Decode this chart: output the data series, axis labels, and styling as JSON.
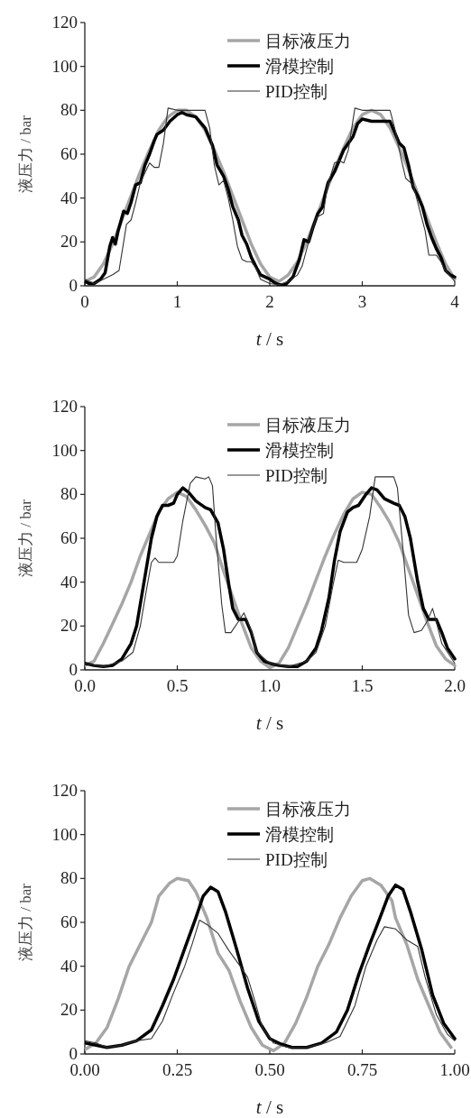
{
  "chart_data": [
    {
      "type": "line",
      "xlabel": "t / s",
      "ylabel": "液压力 / bar",
      "xlim": [
        0,
        4
      ],
      "ylim": [
        0,
        120
      ],
      "xticks": [
        0,
        1,
        2,
        3,
        4
      ],
      "yticks": [
        0,
        20,
        40,
        60,
        80,
        100,
        120
      ],
      "legend": "top right",
      "grid": false,
      "series": [
        {
          "name": "目标液压力",
          "color": "#a6a6a6",
          "x": [
            0,
            0.1,
            0.2,
            0.3,
            0.4,
            0.5,
            0.6,
            0.7,
            0.8,
            0.9,
            1.0,
            1.1,
            1.2,
            1.3,
            1.4,
            1.5,
            1.6,
            1.7,
            1.8,
            1.9,
            2.0,
            2.1,
            2.2,
            2.3,
            2.4,
            2.5,
            2.6,
            2.7,
            2.8,
            2.9,
            3.0,
            3.1,
            3.2,
            3.3,
            3.4,
            3.5,
            3.6,
            3.7,
            3.8,
            3.9,
            4.0
          ],
          "values": [
            2,
            4,
            10,
            19,
            30,
            41,
            52,
            62,
            71,
            77,
            80,
            80,
            77,
            71,
            62,
            52,
            41,
            30,
            19,
            10,
            4,
            2,
            5,
            11,
            20,
            31,
            42,
            53,
            63,
            72,
            78,
            80,
            78,
            72,
            63,
            53,
            42,
            31,
            20,
            10,
            3
          ]
        },
        {
          "name": "滑模控制",
          "color": "#000000",
          "x": [
            0,
            0.05,
            0.1,
            0.17,
            0.22,
            0.27,
            0.3,
            0.33,
            0.36,
            0.42,
            0.46,
            0.5,
            0.55,
            0.6,
            0.65,
            0.7,
            0.75,
            0.78,
            0.85,
            0.92,
            1.0,
            1.05,
            1.1,
            1.2,
            1.3,
            1.38,
            1.43,
            1.5,
            1.55,
            1.6,
            1.66,
            1.7,
            1.75,
            1.8,
            1.86,
            1.9,
            2.0,
            2.05,
            2.1,
            2.17,
            2.25,
            2.32,
            2.37,
            2.42,
            2.47,
            2.52,
            2.57,
            2.6,
            2.63,
            2.7,
            2.75,
            2.8,
            2.9,
            2.95,
            3.0,
            3.1,
            3.2,
            3.3,
            3.35,
            3.4,
            3.45,
            3.5,
            3.55,
            3.6,
            3.65,
            3.7,
            3.75,
            3.8,
            3.85,
            3.9,
            3.95,
            4.0
          ],
          "values": [
            2,
            1,
            1,
            3,
            6,
            18,
            22,
            19,
            25,
            34,
            33,
            38,
            46,
            47,
            55,
            60,
            66,
            69,
            71,
            75,
            78,
            79,
            78,
            77,
            72,
            64,
            55,
            50,
            44,
            36,
            30,
            23,
            19,
            13,
            8,
            5,
            3,
            1.5,
            0.5,
            0.5,
            4,
            12,
            21,
            20,
            27,
            33,
            36,
            42,
            47,
            52,
            57,
            62,
            68,
            74,
            76,
            75,
            75,
            75,
            70,
            65,
            63,
            55,
            45,
            41,
            36,
            28,
            22,
            17,
            13,
            7,
            5,
            4
          ]
        },
        {
          "name": "PID控制",
          "color": "#333333",
          "x": [
            0,
            0.1,
            0.2,
            0.3,
            0.37,
            0.42,
            0.45,
            0.5,
            0.55,
            0.6,
            0.7,
            0.75,
            0.8,
            0.85,
            0.9,
            1.0,
            1.1,
            1.2,
            1.3,
            1.35,
            1.4,
            1.45,
            1.5,
            1.55,
            1.6,
            1.65,
            1.7,
            1.75,
            1.8,
            1.85,
            1.9,
            2.0,
            2.1,
            2.2,
            2.3,
            2.35,
            2.42,
            2.5,
            2.58,
            2.62,
            2.7,
            2.75,
            2.8,
            2.85,
            2.92,
            3.0,
            3.1,
            3.2,
            3.3,
            3.35,
            3.42,
            3.47,
            3.55,
            3.6,
            3.68,
            3.72,
            3.8,
            3.85,
            3.9,
            4.0
          ],
          "values": [
            3,
            1,
            3,
            5,
            7,
            20,
            28,
            30,
            38,
            47,
            56,
            54,
            54,
            65,
            81,
            80,
            80,
            80,
            80,
            72,
            55,
            46,
            48,
            40,
            30,
            18,
            12,
            11,
            11,
            8,
            3,
            1,
            0.5,
            2,
            5,
            9,
            20,
            31,
            33,
            45,
            56,
            57,
            56,
            62,
            81,
            80,
            80,
            80,
            80,
            72,
            58,
            49,
            46,
            38,
            25,
            14,
            14,
            11,
            7,
            2
          ]
        }
      ]
    },
    {
      "type": "line",
      "xlabel": "t / s",
      "ylabel": "液压力 / bar",
      "xlim": [
        0,
        2
      ],
      "ylim": [
        0,
        120
      ],
      "xticks": [
        {
          "value": 0,
          "label": "0.0"
        },
        {
          "value": 0.5,
          "label": "0.5"
        },
        {
          "value": 1,
          "label": "1.0"
        },
        {
          "value": 1.5,
          "label": "1.5"
        },
        {
          "value": 2,
          "label": "2.0"
        }
      ],
      "yticks": [
        0,
        20,
        40,
        60,
        80,
        100,
        120
      ],
      "legend": "top right",
      "grid": false,
      "series": [
        {
          "name": "目标液压力",
          "color": "#a6a6a6",
          "x": [
            0,
            0.05,
            0.1,
            0.15,
            0.2,
            0.25,
            0.3,
            0.35,
            0.4,
            0.45,
            0.5,
            0.55,
            0.6,
            0.65,
            0.7,
            0.75,
            0.8,
            0.85,
            0.9,
            0.95,
            1.0,
            1.05,
            1.1,
            1.15,
            1.2,
            1.25,
            1.3,
            1.35,
            1.4,
            1.45,
            1.5,
            1.55,
            1.6,
            1.65,
            1.7,
            1.75,
            1.8,
            1.85,
            1.9,
            1.95,
            2.0
          ],
          "values": [
            2,
            4,
            12,
            21,
            30,
            40,
            52,
            62,
            72,
            78,
            81,
            79,
            73,
            66,
            58,
            45,
            33,
            21,
            10,
            4,
            1,
            3,
            10,
            20,
            30,
            41,
            52,
            62,
            71,
            78,
            81,
            80,
            74,
            67,
            58,
            46,
            34,
            22,
            11,
            5,
            2
          ]
        },
        {
          "name": "滑模控制",
          "color": "#000000",
          "x": [
            0,
            0.05,
            0.1,
            0.15,
            0.2,
            0.25,
            0.28,
            0.3,
            0.33,
            0.36,
            0.39,
            0.42,
            0.45,
            0.48,
            0.5,
            0.53,
            0.56,
            0.6,
            0.65,
            0.68,
            0.72,
            0.75,
            0.78,
            0.8,
            0.83,
            0.87,
            0.9,
            0.93,
            0.97,
            1.0,
            1.05,
            1.1,
            1.15,
            1.2,
            1.25,
            1.28,
            1.32,
            1.35,
            1.38,
            1.42,
            1.45,
            1.48,
            1.52,
            1.55,
            1.58,
            1.62,
            1.67,
            1.7,
            1.73,
            1.76,
            1.8,
            1.83,
            1.86,
            1.9,
            1.93,
            1.96,
            2.0
          ],
          "values": [
            3,
            2,
            1.5,
            2,
            5,
            12,
            20,
            30,
            45,
            60,
            70,
            75,
            75,
            76,
            80,
            83,
            81,
            77,
            74,
            73,
            67,
            55,
            38,
            28,
            23,
            23,
            17,
            8,
            4,
            3,
            2,
            1.5,
            1.5,
            4,
            10,
            18,
            33,
            50,
            63,
            72,
            74,
            75,
            80,
            83,
            82,
            78,
            76,
            75,
            70,
            60,
            40,
            28,
            23,
            23,
            17,
            10,
            5
          ]
        },
        {
          "name": "PID控制",
          "color": "#333333",
          "x": [
            0,
            0.1,
            0.2,
            0.26,
            0.3,
            0.33,
            0.36,
            0.38,
            0.4,
            0.48,
            0.5,
            0.53,
            0.57,
            0.6,
            0.65,
            0.67,
            0.69,
            0.71,
            0.74,
            0.76,
            0.79,
            0.83,
            0.86,
            0.9,
            0.93,
            1.0,
            1.1,
            1.2,
            1.25,
            1.3,
            1.34,
            1.37,
            1.4,
            1.47,
            1.5,
            1.54,
            1.57,
            1.62,
            1.67,
            1.69,
            1.72,
            1.75,
            1.78,
            1.82,
            1.85,
            1.88,
            1.9,
            1.93,
            2.0
          ],
          "values": [
            3,
            1.5,
            4,
            8,
            20,
            35,
            49,
            51,
            49,
            49,
            52,
            68,
            85,
            88,
            87,
            88,
            84,
            60,
            30,
            17,
            17,
            22,
            26,
            18,
            8,
            3,
            1.5,
            4,
            8,
            20,
            38,
            50,
            49,
            49,
            55,
            70,
            88,
            88,
            88,
            83,
            55,
            25,
            17,
            18,
            22,
            28,
            22,
            12,
            3
          ]
        }
      ]
    },
    {
      "type": "line",
      "xlabel": "t / s",
      "ylabel": "液压力 / bar",
      "xlim": [
        0,
        1
      ],
      "ylim": [
        0,
        120
      ],
      "xticks": [
        {
          "value": 0,
          "label": "0.00"
        },
        {
          "value": 0.25,
          "label": "0.25"
        },
        {
          "value": 0.5,
          "label": "0.50"
        },
        {
          "value": 0.75,
          "label": "0.75"
        },
        {
          "value": 1,
          "label": "1.00"
        }
      ],
      "yticks": [
        0,
        20,
        40,
        60,
        80,
        100,
        120
      ],
      "legend": "top right",
      "grid": false,
      "series": [
        {
          "name": "目标液压力",
          "color": "#a6a6a6",
          "x": [
            0,
            0.03,
            0.06,
            0.09,
            0.12,
            0.15,
            0.18,
            0.2,
            0.23,
            0.25,
            0.28,
            0.3,
            0.33,
            0.36,
            0.39,
            0.42,
            0.45,
            0.48,
            0.51,
            0.54,
            0.57,
            0.6,
            0.63,
            0.66,
            0.69,
            0.72,
            0.75,
            0.77,
            0.8,
            0.83,
            0.84,
            0.87,
            0.9,
            0.93,
            0.96,
            0.99
          ],
          "values": [
            2,
            5,
            12,
            25,
            40,
            50,
            60,
            72,
            78,
            80,
            79,
            74,
            62,
            46,
            38,
            24,
            12,
            4,
            1.5,
            5,
            14,
            26,
            40,
            50,
            62,
            72,
            79,
            80,
            77,
            70,
            62,
            50,
            34,
            22,
            10,
            3
          ]
        },
        {
          "name": "滑模控制",
          "color": "#000000",
          "x": [
            0,
            0.03,
            0.06,
            0.1,
            0.14,
            0.18,
            0.21,
            0.24,
            0.27,
            0.3,
            0.32,
            0.34,
            0.36,
            0.38,
            0.41,
            0.44,
            0.47,
            0.5,
            0.53,
            0.56,
            0.6,
            0.64,
            0.68,
            0.71,
            0.74,
            0.77,
            0.8,
            0.82,
            0.84,
            0.86,
            0.88,
            0.91,
            0.94,
            0.97,
            1.0
          ],
          "values": [
            5,
            4,
            3,
            4,
            6,
            11,
            22,
            34,
            48,
            62,
            72,
            76,
            74,
            65,
            48,
            30,
            15,
            7,
            4.5,
            3,
            3,
            5,
            10,
            20,
            36,
            50,
            63,
            72,
            77,
            75,
            65,
            48,
            27,
            14,
            7
          ]
        },
        {
          "name": "PID控制",
          "color": "#333333",
          "x": [
            0,
            0.03,
            0.06,
            0.1,
            0.14,
            0.18,
            0.21,
            0.24,
            0.27,
            0.29,
            0.31,
            0.33,
            0.36,
            0.39,
            0.42,
            0.44,
            0.46,
            0.48,
            0.51,
            0.55,
            0.6,
            0.65,
            0.69,
            0.73,
            0.76,
            0.79,
            0.81,
            0.84,
            0.87,
            0.9,
            0.92,
            0.95,
            0.98,
            1.0
          ],
          "values": [
            6,
            5,
            3,
            4,
            6,
            7,
            15,
            28,
            40,
            50,
            61,
            59,
            55,
            47,
            40,
            35,
            24,
            12,
            5,
            3,
            3,
            5,
            8,
            22,
            40,
            52,
            58,
            57,
            52,
            49,
            35,
            18,
            9,
            6
          ]
        }
      ]
    }
  ]
}
